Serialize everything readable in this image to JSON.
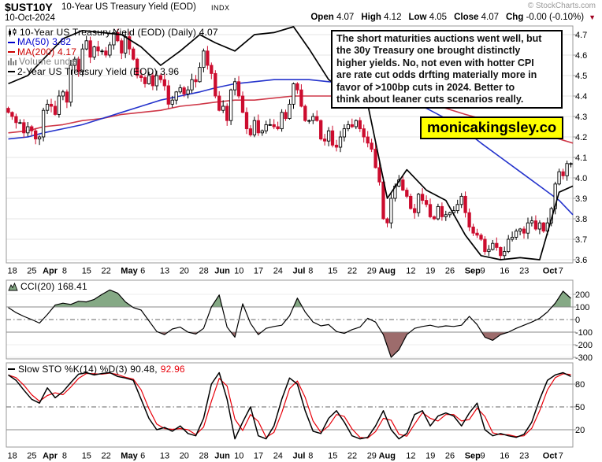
{
  "header": {
    "symbol": "$UST10Y",
    "title": "10-Year US Treasury Yield (EOD)",
    "exchange": "INDX",
    "date": "10-Oct-2024",
    "copyright": "© StockCharts.com",
    "quote": {
      "open_label": "Open",
      "open": "4.07",
      "high_label": "High",
      "high": "4.12",
      "low_label": "Low",
      "low": "4.05",
      "close_label": "Close",
      "close": "4.07",
      "chg_label": "Chg",
      "chg": "-0.00 (-0.10%)"
    }
  },
  "legend_main": {
    "series": "10-Year US Treasury Yield (EOD) (Daily) 4.07",
    "ma50": "MA(50) 3.82",
    "ma200": "MA(200) 4.17",
    "volume": "Volume undef",
    "overlay": "2-Year US Treasury Yield (EOD) 3.96"
  },
  "annotation": "The short maturities auctions went well, but\nthe 30y Treasury one brought distinctly\nhigher yields. No, not even with hotter CPI\nare rate cut odds drfting materially more in\nfavor of >100bp cuts in 2024. Better to\nthink about leaner cuts scenarios really.",
  "badge": "monicakingsley.co",
  "legend_cci": "CCI(20) 168.41",
  "legend_sto": {
    "prefix": "Slow STO %K(14) %D(3) 90.48,",
    "d_value": "92.96"
  },
  "colors": {
    "candle_down": "#cc0c2e",
    "ma50": "#2433cc",
    "ma200": "#cf3848",
    "overlay_line": "#000000",
    "cci_fill_up": "#85a985",
    "cci_fill_down": "#9d6c6c",
    "sto_k": "#000000",
    "sto_d": "#e8000a",
    "badge_bg": "#ffff00",
    "grid": "#e4e4e4",
    "band_line": "#888888",
    "axis": "#999999"
  },
  "chart_data": [
    {
      "type": "candlestick",
      "title": "10-Year US Treasury Yield (EOD) Daily",
      "ylim": [
        3.585,
        4.742
      ],
      "yticks": [
        4.7,
        4.6,
        4.5,
        4.4,
        4.3,
        4.2,
        4.1,
        4.0,
        3.9,
        3.8,
        3.7,
        3.6
      ],
      "first_open": 4.34,
      "week_starts": [
        0,
        5,
        9,
        14,
        19,
        24,
        29,
        34,
        39,
        44,
        49,
        53,
        58,
        63,
        68,
        73,
        77,
        82,
        87,
        92,
        97,
        102,
        107,
        112,
        117,
        121,
        126,
        131,
        136,
        141
      ],
      "xticks": [
        {
          "d": 0,
          "label": "18"
        },
        {
          "d": 5,
          "label": "25"
        },
        {
          "d": 9,
          "label": "Apr",
          "bold": true
        },
        {
          "d": 14,
          "label": "8"
        },
        {
          "d": 19,
          "label": "15"
        },
        {
          "d": 24,
          "label": "22"
        },
        {
          "d": 29,
          "label": "May",
          "bold": true
        },
        {
          "d": 34,
          "label": "6"
        },
        {
          "d": 39,
          "label": "13"
        },
        {
          "d": 44,
          "label": "20"
        },
        {
          "d": 49,
          "label": "28"
        },
        {
          "d": 53,
          "label": "Jun",
          "bold": true
        },
        {
          "d": 58,
          "label": "10"
        },
        {
          "d": 63,
          "label": "17"
        },
        {
          "d": 68,
          "label": "24"
        },
        {
          "d": 73,
          "label": "Jul",
          "bold": true
        },
        {
          "d": 77,
          "label": "8"
        },
        {
          "d": 82,
          "label": "15"
        },
        {
          "d": 87,
          "label": "22"
        },
        {
          "d": 92,
          "label": "29"
        },
        {
          "d": 95,
          "label": "Aug",
          "bold": true
        },
        {
          "d": 102,
          "label": "12"
        },
        {
          "d": 107,
          "label": "19"
        },
        {
          "d": 112,
          "label": "26"
        },
        {
          "d": 117,
          "label": "Sep",
          "bold": true
        },
        {
          "d": 121,
          "label": "9"
        },
        {
          "d": 126,
          "label": "16"
        },
        {
          "d": 131,
          "label": "23"
        },
        {
          "d": 137,
          "label": "Oct",
          "bold": true
        },
        {
          "d": 141,
          "label": "7"
        }
      ],
      "closes": [
        4.32,
        4.3,
        4.27,
        4.27,
        4.22,
        4.25,
        4.23,
        4.19,
        4.2,
        4.33,
        4.36,
        4.35,
        4.31,
        4.4,
        4.42,
        4.37,
        4.55,
        4.58,
        4.52,
        4.63,
        4.67,
        4.59,
        4.64,
        4.62,
        4.62,
        4.6,
        4.65,
        4.71,
        4.67,
        4.61,
        4.69,
        4.63,
        4.58,
        4.5,
        4.49,
        4.46,
        4.5,
        4.45,
        4.5,
        4.48,
        4.45,
        4.36,
        4.38,
        4.42,
        4.44,
        4.41,
        4.43,
        4.48,
        4.47,
        4.54,
        4.62,
        4.55,
        4.51,
        4.4,
        4.33,
        4.35,
        4.28,
        4.43,
        4.47,
        4.4,
        4.32,
        4.24,
        4.21,
        4.28,
        4.22,
        4.23,
        4.26,
        4.26,
        4.25,
        4.24,
        4.32,
        4.29,
        4.36,
        4.46,
        4.43,
        4.35,
        4.28,
        4.28,
        4.3,
        4.28,
        4.19,
        4.18,
        4.23,
        4.16,
        4.15,
        4.2,
        4.24,
        4.26,
        4.25,
        4.28,
        4.24,
        4.2,
        4.17,
        4.14,
        4.05,
        3.98,
        3.8,
        3.78,
        3.9,
        3.96,
        3.99,
        3.94,
        3.91,
        3.85,
        3.83,
        3.92,
        3.89,
        3.87,
        3.81,
        3.8,
        3.86,
        3.81,
        3.82,
        3.83,
        3.84,
        3.87,
        3.91,
        3.83,
        3.76,
        3.73,
        3.72,
        3.7,
        3.64,
        3.65,
        3.68,
        3.66,
        3.62,
        3.64,
        3.7,
        3.71,
        3.74,
        3.75,
        3.73,
        3.78,
        3.79,
        3.75,
        3.78,
        3.74,
        3.78,
        3.85,
        3.97,
        4.03,
        4.01,
        4.07,
        4.07
      ],
      "ma50": [
        4.19,
        4.2,
        4.22,
        4.24,
        4.26,
        4.29,
        4.32,
        4.35,
        4.38,
        4.4,
        4.42,
        4.44,
        4.46,
        4.47,
        4.48,
        4.48,
        4.48,
        4.47,
        4.46,
        4.44,
        4.42,
        4.38,
        4.34,
        4.29,
        4.23,
        4.17,
        4.1,
        4.03,
        3.96,
        3.89,
        3.82
      ],
      "ma200": [
        4.22,
        4.23,
        4.25,
        4.26,
        4.28,
        4.29,
        4.31,
        4.32,
        4.33,
        4.35,
        4.36,
        4.37,
        4.38,
        4.38,
        4.39,
        4.4,
        4.4,
        4.4,
        4.4,
        4.4,
        4.39,
        4.38,
        4.36,
        4.34,
        4.31,
        4.29,
        4.26,
        4.24,
        4.21,
        4.19,
        4.17
      ],
      "two_year": [
        4.46,
        4.5,
        4.58,
        4.68,
        4.72,
        4.71,
        4.7,
        4.64,
        4.55,
        4.62,
        4.7,
        4.66,
        4.62,
        4.7,
        4.71,
        4.74,
        4.63,
        4.48,
        4.42,
        4.36,
        3.9,
        4.04,
        3.94,
        3.89,
        3.72,
        3.62,
        3.6,
        3.61,
        3.6,
        3.93,
        3.96
      ]
    },
    {
      "type": "line",
      "name": "CCI(20)",
      "last_value": 168.41,
      "step": 2,
      "ylim": [
        -330,
        260
      ],
      "yticks": [
        200,
        100,
        0,
        -100,
        -200,
        -300
      ],
      "bands": [
        100,
        -100
      ],
      "values": [
        95,
        55,
        25,
        0,
        -28,
        40,
        115,
        130,
        120,
        145,
        140,
        160,
        200,
        235,
        210,
        140,
        95,
        75,
        -10,
        -95,
        -120,
        -75,
        -60,
        -100,
        -115,
        -70,
        100,
        195,
        -60,
        -140,
        125,
        -30,
        -120,
        -70,
        -55,
        -45,
        30,
        170,
        60,
        -20,
        -50,
        -40,
        -95,
        -110,
        -80,
        -60,
        10,
        -20,
        -120,
        -300,
        -240,
        -120,
        -70,
        -55,
        -45,
        -60,
        -50,
        -55,
        -45,
        25,
        -40,
        -140,
        -165,
        -120,
        -100,
        -70,
        -45,
        -20,
        10,
        60,
        130,
        225,
        168
      ]
    },
    {
      "type": "line",
      "name": "Slow STO %K(14) %D(3)",
      "k_last": 90.48,
      "d_last": 92.96,
      "step": 2,
      "ylim": [
        0,
        100
      ],
      "yticks": [
        80,
        50,
        20
      ],
      "bands": [
        80,
        20
      ],
      "k": [
        92,
        85,
        72,
        60,
        55,
        75,
        62,
        70,
        82,
        93,
        95,
        92,
        94,
        95,
        90,
        88,
        85,
        60,
        35,
        20,
        23,
        18,
        25,
        15,
        12,
        35,
        80,
        95,
        60,
        8,
        30,
        50,
        12,
        8,
        25,
        60,
        88,
        80,
        45,
        18,
        15,
        35,
        45,
        30,
        12,
        8,
        10,
        25,
        45,
        20,
        8,
        15,
        40,
        45,
        25,
        38,
        42,
        38,
        25,
        42,
        55,
        20,
        12,
        15,
        12,
        10,
        14,
        30,
        60,
        85,
        92,
        95,
        90
      ]
    }
  ]
}
